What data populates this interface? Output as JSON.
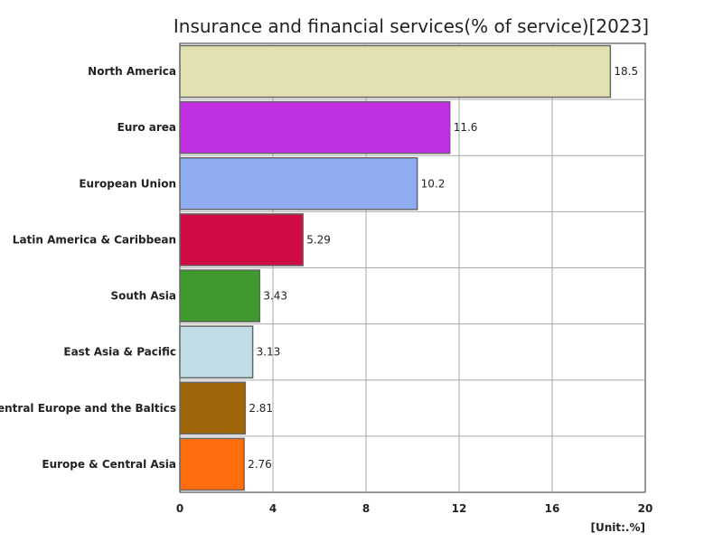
{
  "chart_data": {
    "type": "bar",
    "orientation": "horizontal",
    "title": "Insurance and financial services(% of service)[2023]",
    "unit": "[Unit:.%]",
    "categories": [
      "North America",
      "Euro area",
      "European Union",
      "Latin America & Caribbean",
      "South Asia",
      "East Asia & Pacific",
      "Central Europe and the Baltics",
      "Europe & Central Asia"
    ],
    "values": [
      18.5,
      11.6,
      10.2,
      5.29,
      3.43,
      3.13,
      2.81,
      2.76
    ],
    "value_labels": [
      "18.5",
      "11.6",
      "10.2",
      "5.29",
      "3.43",
      "3.13",
      "2.81",
      "2.76"
    ],
    "colors": [
      "#e0e0b0",
      "#c030e0",
      "#90acf0",
      "#d00a44",
      "#3e9a2e",
      "#c0dde5",
      "#a0660a",
      "#ff6e0e"
    ],
    "xlim": [
      0,
      20
    ],
    "xticks": [
      0,
      4,
      8,
      12,
      16,
      20
    ],
    "tick_labels": [
      "0",
      "4",
      "8",
      "12",
      "16",
      "20"
    ],
    "grid": true,
    "legend": "none"
  }
}
